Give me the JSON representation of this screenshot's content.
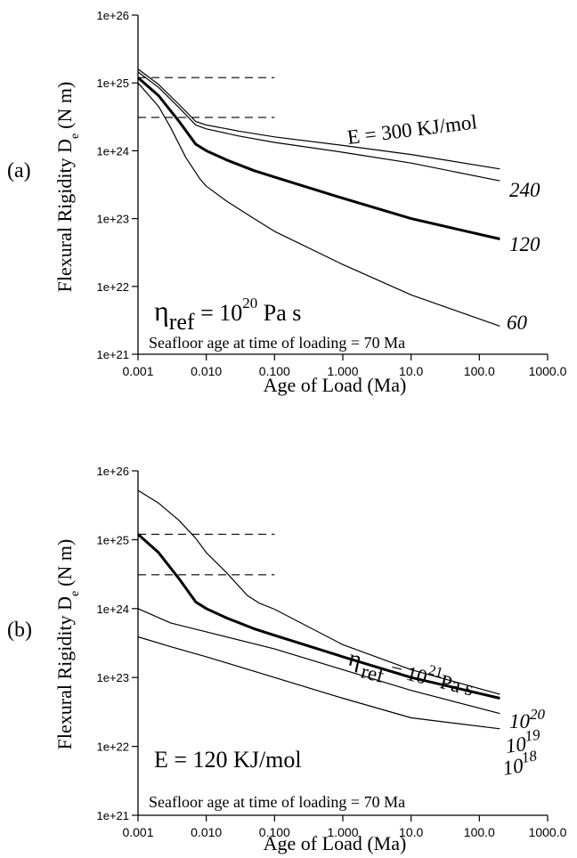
{
  "chart_data": [
    {
      "panel_label": "(a)",
      "type": "line",
      "xscale": "log",
      "yscale": "log",
      "xlabel": "Age of Load (Ma)",
      "ylabel_main": "Flexural Rigidity D",
      "ylabel_sub": "e",
      "ylabel_unit": "(N m)",
      "xlim": [
        0.001,
        1000.0
      ],
      "ylim": [
        1e+21,
        1e+26
      ],
      "x_tick_labels": [
        "0.001",
        "0.010",
        "0.100",
        "1.000",
        "10.0",
        "100.0",
        "1000.0"
      ],
      "y_tick_labels": [
        "1e+21",
        "1e+22",
        "1e+23",
        "1e+24",
        "1e+25",
        "1e+26"
      ],
      "reference_lines": [
        1.2e+25,
        3.1e+24
      ],
      "reference_lines_x_end": 0.1,
      "annotation_eta": {
        "base": "η",
        "sub": "ref",
        "mid": " = 10",
        "sup": "20",
        "tail": " Pa s"
      },
      "annotation_note": "Seafloor age at time of loading  = 70 Ma",
      "series": [
        {
          "label": "E = 300 KJ/mol",
          "bold": false,
          "x": [
            0.001,
            0.002,
            0.004,
            0.007,
            0.01,
            0.03,
            0.1,
            1.0,
            10.0,
            200.0
          ],
          "y": [
            1.6e+25,
            9.5e+24,
            4.8e+24,
            2.7e+24,
            2.4e+24,
            1.95e+24,
            1.6e+24,
            1.2e+24,
            8.8e+23,
            5.4e+23
          ]
        },
        {
          "label": "240",
          "bold": false,
          "x": [
            0.001,
            0.002,
            0.004,
            0.007,
            0.01,
            0.03,
            0.1,
            1.0,
            10.0,
            200.0
          ],
          "y": [
            1.45e+25,
            8.6e+24,
            4.3e+24,
            2.4e+24,
            2.1e+24,
            1.65e+24,
            1.33e+24,
            9.5e+23,
            6.6e+23,
            3.6e+23
          ]
        },
        {
          "label": "120",
          "bold": true,
          "x": [
            0.001,
            0.002,
            0.004,
            0.007,
            0.01,
            0.02,
            0.05,
            0.1,
            1.0,
            10.0,
            200.0
          ],
          "y": [
            1.2e+25,
            6.5e+24,
            2.7e+24,
            1.25e+24,
            1e+24,
            7.3e+23,
            5.1e+23,
            4.1e+23,
            2e+23,
            1e+23,
            5e+22
          ]
        },
        {
          "label": "60",
          "bold": false,
          "x": [
            0.001,
            0.002,
            0.003,
            0.005,
            0.008,
            0.01,
            0.02,
            0.05,
            0.1,
            1.0,
            10.0,
            200.0
          ],
          "y": [
            1e+25,
            4.5e+24,
            2.2e+24,
            8e+23,
            3.9e+23,
            3e+23,
            1.8e+23,
            1e+23,
            6.5e+22,
            2.1e+22,
            7.5e+21,
            2.6e+21
          ]
        }
      ]
    },
    {
      "panel_label": "(b)",
      "type": "line",
      "xscale": "log",
      "yscale": "log",
      "xlabel": "Age of Load (Ma)",
      "ylabel_main": "Flexural Rigidity D",
      "ylabel_sub": "e",
      "ylabel_unit": "(N m)",
      "xlim": [
        0.001,
        1000.0
      ],
      "ylim": [
        1e+21,
        1e+26
      ],
      "x_tick_labels": [
        "0.001",
        "0.010",
        "0.100",
        "1.000",
        "10.0",
        "100.0",
        "1000.0"
      ],
      "y_tick_labels": [
        "1e+21",
        "1e+22",
        "1e+23",
        "1e+24",
        "1e+25",
        "1e+26"
      ],
      "reference_lines": [
        1.2e+25,
        3.1e+24
      ],
      "reference_lines_x_end": 0.1,
      "annotation_E": "E = 120 KJ/mol",
      "annotation_note": "Seafloor age at time of loading  = 70 Ma",
      "series": [
        {
          "label_base": "η",
          "label_sub": "ref",
          "label_mid": " = 10",
          "label_sup": "21",
          "label_tail": "Pa s",
          "bold": false,
          "x": [
            0.001,
            0.002,
            0.004,
            0.007,
            0.01,
            0.02,
            0.04,
            0.06,
            0.1,
            1.0,
            10.0,
            200.0
          ],
          "y": [
            5.2e+25,
            3.4e+25,
            1.9e+25,
            1.05e+25,
            6.5e+24,
            3.3e+24,
            1.55e+24,
            1.2e+24,
            9.8e+23,
            3e+23,
            1.3e+23,
            5.7e+22
          ]
        },
        {
          "label_base": "10",
          "label_sup": "20",
          "bold": true,
          "x": [
            0.001,
            0.002,
            0.004,
            0.007,
            0.01,
            0.02,
            0.05,
            0.1,
            1.0,
            10.0,
            200.0
          ],
          "y": [
            1.2e+25,
            6.5e+24,
            2.7e+24,
            1.25e+24,
            1e+24,
            7.3e+23,
            5.1e+23,
            4.1e+23,
            2e+23,
            1e+23,
            5e+22
          ]
        },
        {
          "label_base": "10",
          "label_sup": "19",
          "bold": false,
          "x": [
            0.001,
            0.003,
            0.01,
            0.1,
            1.0,
            10.0,
            200.0
          ],
          "y": [
            1e+24,
            6.2e+23,
            4.6e+23,
            2.6e+23,
            1.3e+23,
            6.5e+22,
            3e+22
          ]
        },
        {
          "label_base": "10",
          "label_sup": "18",
          "bold": false,
          "x": [
            0.001,
            0.003,
            0.01,
            0.1,
            1.0,
            10.0,
            200.0
          ],
          "y": [
            3.9e+23,
            2.8e+23,
            2e+23,
            1e+23,
            5e+22,
            2.6e+22,
            1.8e+22
          ]
        }
      ]
    }
  ]
}
